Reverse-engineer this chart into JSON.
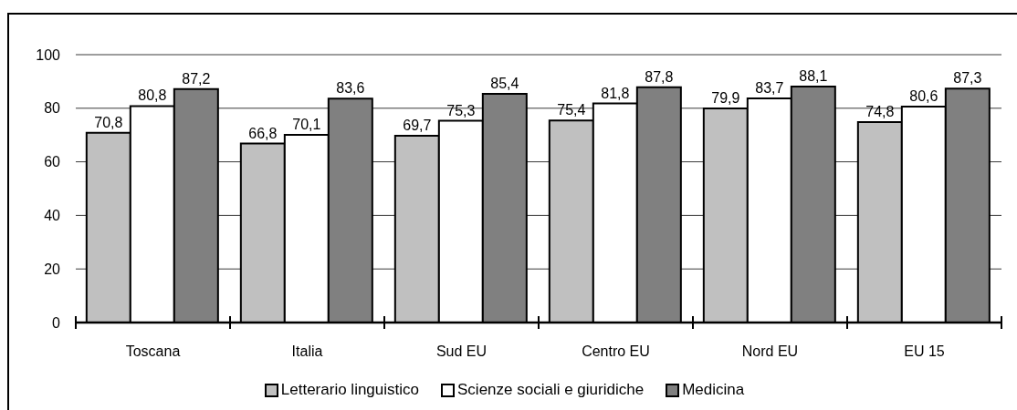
{
  "chart_data": {
    "type": "bar",
    "categories": [
      "Toscana",
      "Italia",
      "Sud EU",
      "Centro EU",
      "Nord EU",
      "EU 15"
    ],
    "series": [
      {
        "name": "Letterario linguistico",
        "color": "#c0c0c0",
        "values": [
          70.8,
          66.8,
          69.7,
          75.4,
          79.9,
          74.8
        ],
        "value_labels": [
          "70,8",
          "66,8",
          "69,7",
          "75,4",
          "79,9",
          "74,8"
        ]
      },
      {
        "name": "Scienze sociali e giuridiche",
        "color": "#ffffff",
        "values": [
          80.8,
          70.1,
          75.3,
          81.8,
          83.7,
          80.6
        ],
        "value_labels": [
          "80,8",
          "70,1",
          "75,3",
          "81,8",
          "83,7",
          "80,6"
        ]
      },
      {
        "name": "Medicina",
        "color": "#808080",
        "values": [
          87.2,
          83.6,
          85.4,
          87.8,
          88.1,
          87.3
        ],
        "value_labels": [
          "87,2",
          "83,6",
          "85,4",
          "87,8",
          "88,1",
          "87,3"
        ]
      }
    ],
    "ylim": [
      0,
      100
    ],
    "yticks": [
      0,
      20,
      40,
      60,
      80,
      100
    ],
    "grid": "y",
    "legend": "bottom"
  }
}
